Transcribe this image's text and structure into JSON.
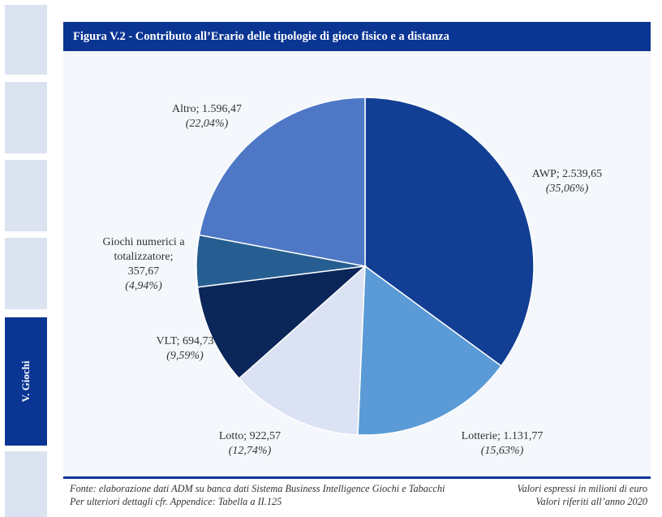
{
  "sidebar": {
    "tabs": [
      {
        "label": "",
        "active": false
      },
      {
        "label": "",
        "active": false
      },
      {
        "label": "",
        "active": false
      },
      {
        "label": "",
        "active": false
      },
      {
        "label": "V. Giochi",
        "active": true
      },
      {
        "label": "",
        "active": false
      }
    ]
  },
  "colors": {
    "header_bg": "#0a3593",
    "panel_bg": "#f4f7fb",
    "tab_bg": "#dbe3f0"
  },
  "chart_data": {
    "type": "pie",
    "title": "Figura V.2 - Contributo all’Erario delle tipologie di gioco fisico e a distanza",
    "unit": "milioni di euro",
    "start_angle_deg": 0,
    "direction": "clockwise",
    "slices": [
      {
        "name": "AWP",
        "value": 2539.65,
        "value_label": "2.539,65",
        "percent": 35.06,
        "percent_label": "(35,06%)",
        "color": "#123f94"
      },
      {
        "name": "Lotterie",
        "value": 1131.77,
        "value_label": "1.131,77",
        "percent": 15.63,
        "percent_label": "(15,63%)",
        "color": "#5a9ad6"
      },
      {
        "name": "Lotto",
        "value": 922.57,
        "value_label": "922,57",
        "percent": 12.74,
        "percent_label": "(12,74%)",
        "color": "#dae2f3"
      },
      {
        "name": "VLT",
        "value": 694.73,
        "value_label": "694,73",
        "percent": 9.59,
        "percent_label": "(9,59%)",
        "color": "#0b2659"
      },
      {
        "name": "Giochi numerici a totalizzatore",
        "value": 357.67,
        "value_label": "357,67",
        "percent": 4.94,
        "percent_label": "(4,94%)",
        "color": "#265e91"
      },
      {
        "name": "Altro",
        "value": 1596.47,
        "value_label": "1.596,47",
        "percent": 22.04,
        "percent_label": "(22,04%)",
        "color": "#4e78c6"
      }
    ],
    "labels": {
      "AWP": {
        "lines": [
          "AWP; 2.539,65"
        ],
        "pct": "(35,06%)"
      },
      "Lotterie": {
        "lines": [
          "Lotterie; 1.131,77"
        ],
        "pct": "(15,63%)"
      },
      "Lotto": {
        "lines": [
          "Lotto; 922,57"
        ],
        "pct": "(12,74%)"
      },
      "VLT": {
        "lines": [
          "VLT; 694,73"
        ],
        "pct": "(9,59%)"
      },
      "Giochi": {
        "lines": [
          "Giochi numerici a",
          "totalizzatore;",
          "357,67"
        ],
        "pct": "(4,94%)"
      },
      "Altro": {
        "lines": [
          "Altro; 1.596,47"
        ],
        "pct": "(22,04%)"
      }
    }
  },
  "footer": {
    "source_line1": "Fonte: elaborazione dati ADM su banca dati Sistema Business Intelligence Giochi e Tabacchi",
    "source_line2": "Per ulteriori dettagli cfr. Appendice: Tabella a II.125",
    "note_line1": "Valori espressi in milioni di euro",
    "note_line2": "Valori riferiti all’anno 2020"
  }
}
